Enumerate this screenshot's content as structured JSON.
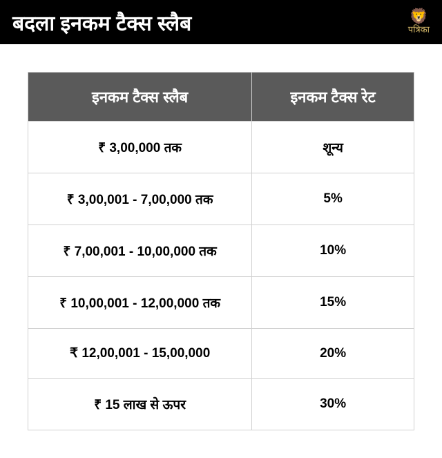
{
  "header": {
    "title": "बदला इनकम टैक्स स्लैब",
    "logo_text": "पत्रिका",
    "logo_color": "#d4b869"
  },
  "table": {
    "type": "table",
    "header_bg": "#5a5a5a",
    "header_text_color": "#ffffff",
    "cell_bg": "#ffffff",
    "cell_text_color": "#000000",
    "border_color": "#d0d0d0",
    "header_fontsize": 22,
    "cell_fontsize": 19,
    "columns": [
      {
        "label": "इनकम टैक्स स्लैब",
        "width": "58%"
      },
      {
        "label": "इनकम टैक्स रेट",
        "width": "42%"
      }
    ],
    "rows": [
      {
        "slab": "₹ 3,00,000 तक",
        "rate": "शून्य"
      },
      {
        "slab": "₹ 3,00,001 - 7,00,000 तक",
        "rate": "5%"
      },
      {
        "slab": "₹ 7,00,001 - 10,00,000 तक",
        "rate": "10%"
      },
      {
        "slab": "₹ 10,00,001 - 12,00,000 तक",
        "rate": "15%"
      },
      {
        "slab": "₹ 12,00,001 - 15,00,000",
        "rate": "20%"
      },
      {
        "slab": "₹ 15 लाख से ऊपर",
        "rate": "30%"
      }
    ]
  }
}
